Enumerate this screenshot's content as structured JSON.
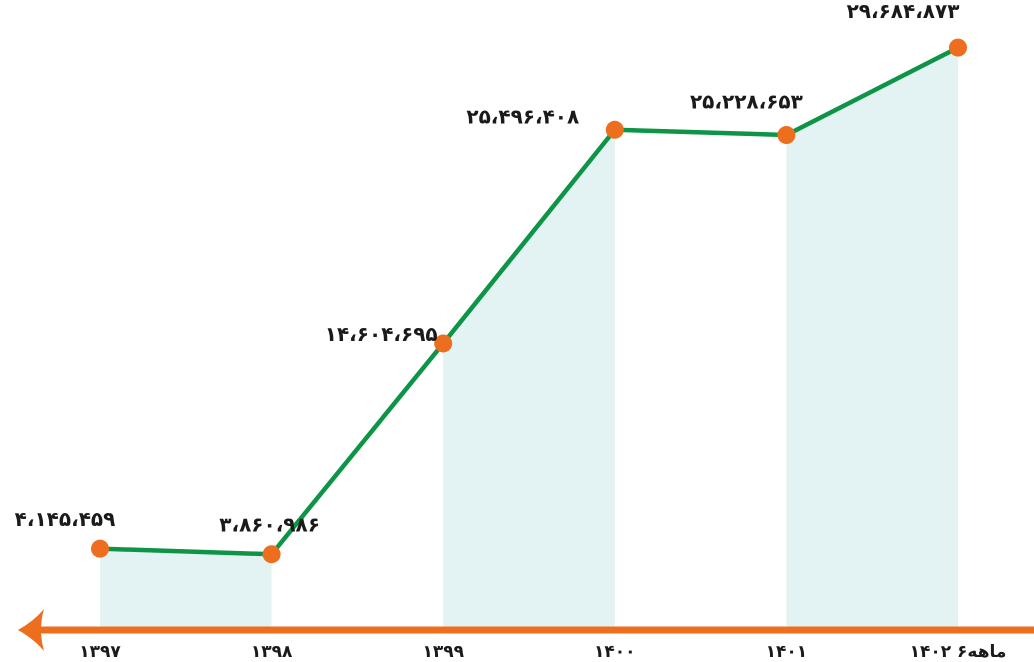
{
  "chart_data": {
    "type": "line",
    "categories": [
      "۱۳۹۷",
      "۱۳۹۸",
      "۱۳۹۹",
      "۱۴۰۰",
      "۱۴۰۱",
      "۱۴۰۲ ۶ماهه"
    ],
    "series": [
      {
        "values": [
          4145459,
          3860986,
          14604695,
          25496408,
          25228653,
          29684873
        ],
        "value_labels": [
          "۴،۱۴۵،۴۵۹",
          "۳،۸۶۰،۹۸۶",
          "۱۴،۶۰۴،۶۹۵",
          "۲۵،۴۹۶،۴۰۸",
          "۲۵،۲۲۸،۶۵۳",
          "۲۹،۶۸۴،۸۷۳"
        ]
      }
    ],
    "shaded_category_pairs": [
      [
        0,
        1
      ],
      [
        2,
        3
      ],
      [
        4,
        5
      ]
    ],
    "ylim": [
      0,
      32500000
    ],
    "grid": false,
    "colors": {
      "line": "#0e9447",
      "marker": "#ee6e1f",
      "axis": "#ee6e1f",
      "fill": "#e3f2f2",
      "text": "#1a1a1a"
    }
  }
}
